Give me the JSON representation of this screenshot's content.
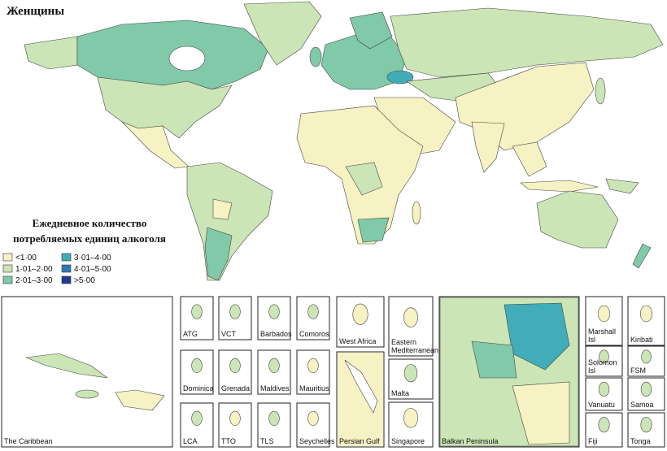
{
  "title": "Женщины",
  "legend": {
    "title_lines": [
      "Ежедневное количество",
      "потребляемых единиц алкоголя"
    ],
    "items": [
      {
        "label": "<1·00",
        "color": "#f6f2c3"
      },
      {
        "label": "1·01–2·00",
        "color": "#cbe5b6"
      },
      {
        "label": "2·01–3·00",
        "color": "#80c9a9"
      },
      {
        "label": "3·01–4·00",
        "color": "#40adb8"
      },
      {
        "label": "4·01–5·00",
        "color": "#2c79b3"
      },
      {
        "label": ">5·00",
        "color": "#213a8d"
      }
    ]
  },
  "insets": [
    "The Caribbean",
    "ATG",
    "VCT",
    "Barbados",
    "Comoros",
    "Dominica",
    "Grenada",
    "Maldives",
    "Mauritius",
    "LCA",
    "TTO",
    "TLS",
    "Seychelles",
    "West Africa",
    "Persian Gulf",
    "Eastern Mediterranean",
    "Malta",
    "Singapore",
    "Balkan Peninsula",
    "Marshall Isl",
    "Kiribati",
    "Solomon Isl",
    "FSM",
    "Vanuatu",
    "Samoa",
    "Fiji",
    "Tonga"
  ]
}
